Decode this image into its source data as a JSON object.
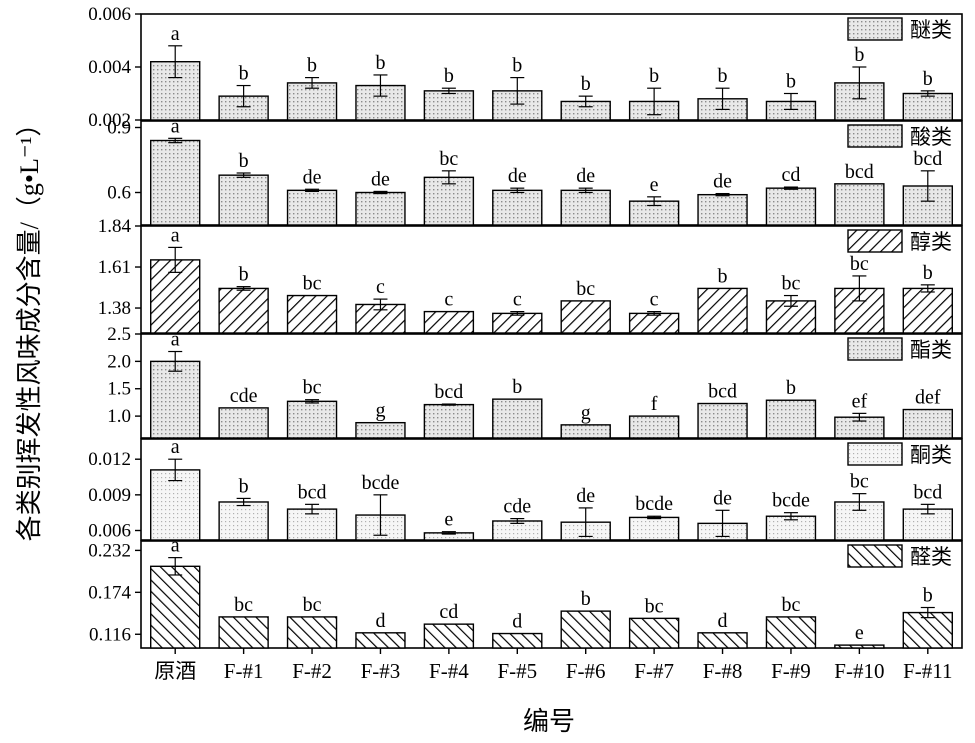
{
  "chart_data": {
    "type": "bar",
    "xlabel": "编号",
    "ylabel": "各类别挥发性风味成分含量/（g•L⁻¹）",
    "categories": [
      "原酒",
      "F-#1",
      "F-#2",
      "F-#3",
      "F-#4",
      "F-#5",
      "F-#6",
      "F-#7",
      "F-#8",
      "F-#9",
      "F-#10",
      "F-#11"
    ],
    "panels": [
      {
        "name": "醚类",
        "pattern": "dots",
        "ylim": [
          0.002,
          0.006
        ],
        "ticks": [
          "0.002",
          "0.004",
          "0.006"
        ],
        "values": [
          0.0042,
          0.0029,
          0.0034,
          0.0033,
          0.0031,
          0.0031,
          0.0027,
          0.0027,
          0.0028,
          0.0027,
          0.0034,
          0.003
        ],
        "errors": [
          0.0006,
          0.0004,
          0.0002,
          0.0004,
          0.0001,
          0.0005,
          0.0002,
          0.0005,
          0.0004,
          0.0003,
          0.0006,
          0.0001
        ],
        "letters": [
          "a",
          "b",
          "b",
          "b",
          "b",
          "b",
          "b",
          "b",
          "b",
          "b",
          "b",
          "b"
        ]
      },
      {
        "name": "酸类",
        "pattern": "dots",
        "ylim": [
          0.45,
          0.93
        ],
        "ticks": [
          "0.6",
          "0.9"
        ],
        "values": [
          0.84,
          0.68,
          0.61,
          0.6,
          0.67,
          0.61,
          0.61,
          0.56,
          0.59,
          0.62,
          0.64,
          0.63
        ],
        "errors": [
          0.01,
          0.01,
          0.005,
          0.005,
          0.03,
          0.01,
          0.01,
          0.02,
          0.005,
          0.005,
          0.0,
          0.07
        ],
        "letters": [
          "a",
          "b",
          "de",
          "de",
          "bc",
          "de",
          "de",
          "e",
          "de",
          "cd",
          "bcd",
          "bcd"
        ]
      },
      {
        "name": "醇类",
        "pattern": "backslash",
        "ylim": [
          1.24,
          1.84
        ],
        "ticks": [
          "1.38",
          "1.61",
          "1.84"
        ],
        "values": [
          1.65,
          1.49,
          1.45,
          1.4,
          1.36,
          1.35,
          1.42,
          1.35,
          1.49,
          1.42,
          1.49,
          1.49
        ],
        "errors": [
          0.07,
          0.01,
          0.0,
          0.03,
          0.0,
          0.01,
          0.0,
          0.01,
          0.0,
          0.03,
          0.07,
          0.02
        ],
        "letters": [
          "a",
          "b",
          "bc",
          "c",
          "c",
          "c",
          "bc",
          "c",
          "b",
          "bc",
          "bc",
          "b"
        ]
      },
      {
        "name": "酯类",
        "pattern": "dots",
        "ylim": [
          0.6,
          2.5
        ],
        "ticks": [
          "1.0",
          "1.5",
          "2.0",
          "2.5"
        ],
        "values": [
          2.0,
          1.15,
          1.27,
          0.88,
          1.21,
          1.31,
          0.84,
          1.0,
          1.23,
          1.29,
          0.98,
          1.12
        ],
        "errors": [
          0.18,
          0.0,
          0.03,
          0.0,
          0.01,
          0.0,
          0.0,
          0.0,
          0.0,
          0.0,
          0.07,
          0.0
        ],
        "letters": [
          "a",
          "cde",
          "bc",
          "g",
          "bcd",
          "b",
          "g",
          "f",
          "bcd",
          "b",
          "ef",
          "def"
        ]
      },
      {
        "name": "酮类",
        "pattern": "dots-light",
        "ylim": [
          0.0052,
          0.0137
        ],
        "ticks": [
          "0.006",
          "0.009",
          "0.012"
        ],
        "values": [
          0.0111,
          0.0084,
          0.0078,
          0.0073,
          0.0058,
          0.0068,
          0.0067,
          0.0071,
          0.0066,
          0.0072,
          0.0084,
          0.0078
        ],
        "errors": [
          0.0009,
          0.0003,
          0.0004,
          0.0017,
          0.0001,
          0.0002,
          0.0012,
          0.0001,
          0.0011,
          0.0003,
          0.0007,
          0.0004
        ],
        "letters": [
          "a",
          "b",
          "bcd",
          "bcde",
          "e",
          "cde",
          "de",
          "bcde",
          "de",
          "bcde",
          "bc",
          "bcd"
        ]
      },
      {
        "name": "醛类",
        "pattern": "slash",
        "ylim": [
          0.097,
          0.245
        ],
        "ticks": [
          "0.116",
          "0.174",
          "0.232"
        ],
        "values": [
          0.21,
          0.14,
          0.14,
          0.118,
          0.13,
          0.117,
          0.148,
          0.138,
          0.118,
          0.14,
          0.101,
          0.146
        ],
        "errors": [
          0.012,
          0.0,
          0.0,
          0.0,
          0.0,
          0.0,
          0.0,
          0.0,
          0.0,
          0.0,
          0.0,
          0.007
        ],
        "letters": [
          "a",
          "bc",
          "bc",
          "d",
          "cd",
          "d",
          "b",
          "bc",
          "d",
          "bc",
          "e",
          "b"
        ]
      }
    ],
    "grid": false,
    "legend_position": "top-right"
  }
}
